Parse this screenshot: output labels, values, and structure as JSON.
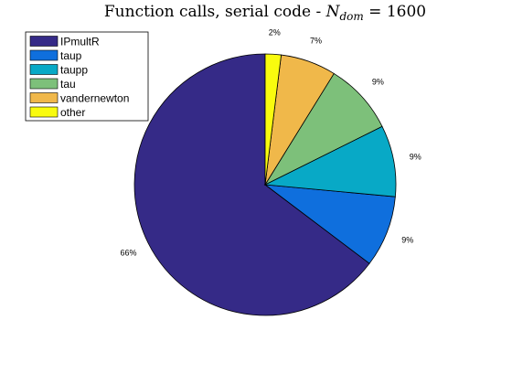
{
  "figure": {
    "title": {
      "prefix": "Function calls, serial code - ",
      "var_main": "N",
      "var_sub": "dom",
      "suffix": " = 1600"
    }
  },
  "chart_data": {
    "type": "pie",
    "title": "Function calls, serial code - N_dom = 1600",
    "legend_position": "top-left",
    "slices": [
      {
        "name": "IPmultR",
        "value": 66,
        "label": "66%",
        "color": "#352a87"
      },
      {
        "name": "taup",
        "value": 9,
        "label": "9%",
        "color": "#0f6fdd"
      },
      {
        "name": "taupp",
        "value": 9,
        "label": "9%",
        "color": "#08a9c6"
      },
      {
        "name": "tau",
        "value": 9,
        "label": "9%",
        "color": "#7dc07a"
      },
      {
        "name": "vandernewton",
        "value": 7,
        "label": "7%",
        "color": "#f0b84a"
      },
      {
        "name": "other",
        "value": 2,
        "label": "2%",
        "color": "#f9fb0e"
      }
    ]
  }
}
